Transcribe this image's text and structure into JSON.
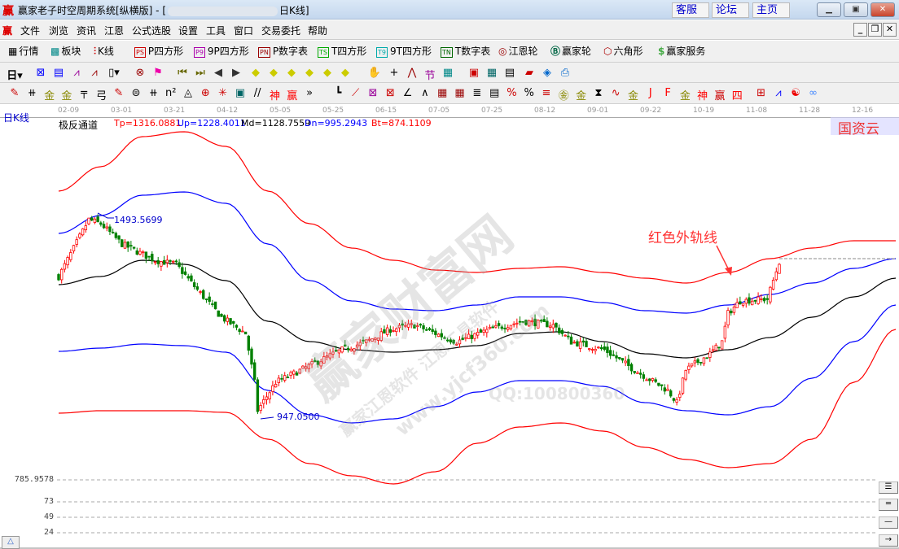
{
  "window": {
    "title": "赢家老子时空周期系统[纵横版] - [",
    "title_suffix": "日K线]",
    "logo": "赢",
    "links": [
      "客服",
      "论坛",
      "主页"
    ],
    "controls": [
      "minimize",
      "maximize",
      "close"
    ]
  },
  "menu": {
    "items": [
      "文件",
      "浏览",
      "资讯",
      "江恩",
      "公式选股",
      "设置",
      "工具",
      "窗口",
      "交易委托",
      "帮助"
    ]
  },
  "toolbar1": {
    "items": [
      {
        "icon": "table-icon",
        "label": "行情"
      },
      {
        "icon": "blocks-icon",
        "label": "板块"
      },
      {
        "icon": "candles-icon",
        "label": "K线"
      },
      {
        "icon": "ps-icon",
        "box": "PS",
        "color": "#c00",
        "label": "P四方形"
      },
      {
        "icon": "p9-icon",
        "box": "P9",
        "color": "#a0a",
        "label": "9P四方形"
      },
      {
        "icon": "pn-icon",
        "box": "PN",
        "color": "#900",
        "label": "P数字表"
      },
      {
        "icon": "ts-icon",
        "box": "TS",
        "color": "#0a0",
        "label": "T四方形"
      },
      {
        "icon": "t9-icon",
        "box": "T9",
        "color": "#0aa",
        "label": "9T四方形"
      },
      {
        "icon": "tn-icon",
        "box": "TN",
        "color": "#060",
        "label": "T数字表"
      },
      {
        "icon": "target-icon",
        "label": "江恩轮"
      },
      {
        "icon": "big-wheel-icon",
        "label": "赢家轮"
      },
      {
        "icon": "hexagon-icon",
        "label": "六角形"
      },
      {
        "icon": "dollar-icon",
        "label": "赢家服务"
      }
    ]
  },
  "toolbar2": {
    "period": "日"
  },
  "chart": {
    "period_label": "日K线",
    "indicator": {
      "name": "极反通道",
      "tp": "Tp=1316.0881",
      "up": "Up=1228.4011",
      "md": "Md=1128.7559",
      "dn": "Dn=995.2943",
      "bt": "Bt=874.1109"
    },
    "colors": {
      "tp": "#ff0000",
      "up": "#0000ff",
      "md": "#000000",
      "dn": "#0000ff",
      "bt": "#ff0000",
      "up_candle": "#ff0000",
      "down_candle": "#008000"
    },
    "high_label": "1493.5699",
    "low_label": "947.0500",
    "annotation": "红色外轨线",
    "corner_watermark": "国资云",
    "watermarks": [
      "赢家财富网",
      "赢家江恩软件 江恩工具软件",
      "www.yjcf360.com",
      "QQ:100800360"
    ]
  },
  "lower_pane": {
    "labels": [
      "785.9578",
      "73",
      "49",
      "24"
    ]
  },
  "chart_data": {
    "type": "candlestick",
    "x_ticks": [
      "02-09",
      "03-01",
      "03-21",
      "04-12",
      "05-05",
      "05-25",
      "06-15",
      "07-05",
      "07-25",
      "08-12",
      "09-01",
      "09-22",
      "10-19",
      "11-08",
      "11-28",
      "12-16"
    ],
    "series": [
      {
        "name": "Tp",
        "values": [
          1572.3,
          1639.7,
          1722.8,
          1736.3,
          1695.8,
          1572.3,
          1482.4,
          1415.0,
          1381.3,
          1354.3,
          1347.6,
          1358.8,
          1363.3,
          1347.6,
          1331.8,
          1318.3,
          1347.6,
          1385.8,
          1415.0,
          1435.2,
          1435.2
        ]
      },
      {
        "name": "Up",
        "values": [
          1455.4,
          1504.8,
          1561.0,
          1570.0,
          1538.5,
          1426.2,
          1325.1,
          1268.9,
          1246.4,
          1242.0,
          1257.7,
          1280.1,
          1280.1,
          1264.4,
          1242.0,
          1235.2,
          1257.7,
          1286.9,
          1318.3,
          1358.8,
          1385.8
        ]
      },
      {
        "name": "Md",
        "values": [
          1313.9,
          1336.3,
          1381.3,
          1370.0,
          1325.1,
          1212.7,
          1156.6,
          1134.1,
          1127.4,
          1134.1,
          1145.3,
          1179.0,
          1183.5,
          1156.6,
          1122.9,
          1111.6,
          1134.1,
          1167.8,
          1224.0,
          1280.1,
          1331.8
        ]
      },
      {
        "name": "Dn",
        "values": [
          1129.6,
          1138.6,
          1149.8,
          1145.3,
          1127.4,
          1021.7,
          954.3,
          931.9,
          943.1,
          976.8,
          1017.2,
          1048.7,
          1048.7,
          1033.0,
          988.0,
          965.6,
          954.3,
          976.8,
          1055.4,
          1156.6,
          1257.7
        ]
      },
      {
        "name": "Bt",
        "values": [
          958.8,
          965.6,
          965.6,
          965.6,
          961.1,
          886.9,
          819.5,
          785.8,
          763.4,
          797.0,
          875.7,
          920.6,
          931.9,
          909.4,
          864.5,
          830.9,
          808.3,
          819.5,
          886.9,
          1044.2,
          1190.3
        ]
      }
    ],
    "close_path": [
      [
        0,
        1336
      ],
      [
        10,
        1493.6
      ],
      [
        14,
        1482
      ],
      [
        21,
        1426
      ],
      [
        32,
        1381
      ],
      [
        39,
        1370
      ],
      [
        45,
        1309
      ],
      [
        54,
        1224
      ],
      [
        62,
        1179
      ],
      [
        65,
        1044
      ],
      [
        66,
        966
      ],
      [
        72,
        1044
      ],
      [
        83,
        1089
      ],
      [
        94,
        1134
      ],
      [
        102,
        1156
      ],
      [
        110,
        1190
      ],
      [
        118,
        1202
      ],
      [
        132,
        1156
      ],
      [
        143,
        1190
      ],
      [
        154,
        1213
      ],
      [
        164,
        1202
      ],
      [
        170,
        1156
      ],
      [
        181,
        1134
      ],
      [
        191,
        1078
      ],
      [
        202,
        1022
      ],
      [
        205,
        988
      ],
      [
        208,
        1078
      ],
      [
        216,
        1123
      ],
      [
        220,
        1156
      ],
      [
        222,
        1235
      ],
      [
        226,
        1269
      ],
      [
        235,
        1274
      ],
      [
        239,
        1377
      ]
    ],
    "y_high": 1493.5699,
    "y_low": 947.05
  }
}
